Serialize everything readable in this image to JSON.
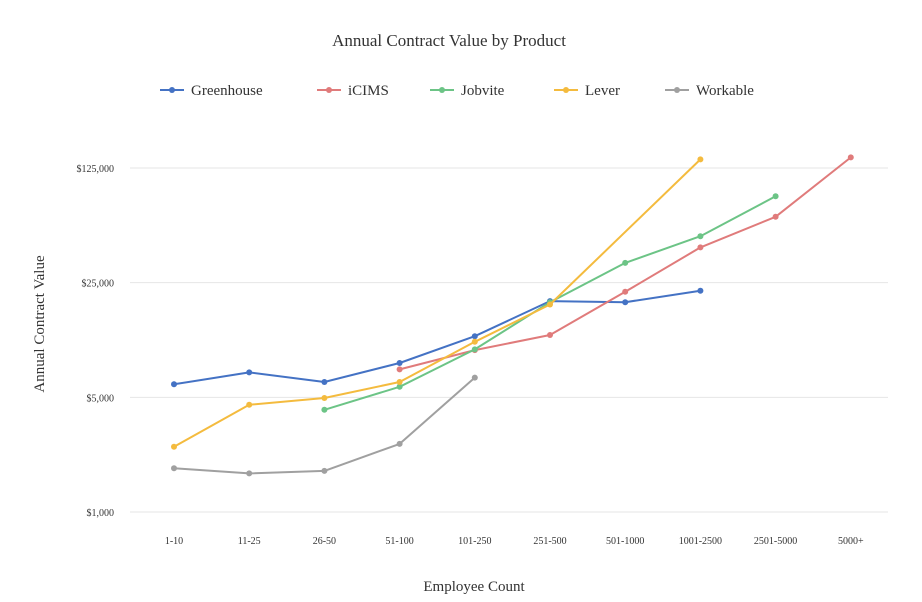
{
  "chart_data": {
    "type": "line",
    "title": "Annual Contract Value by Product",
    "xlabel": "Employee Count",
    "ylabel": "Annual Contract Value",
    "y_scale": "log",
    "ylim": [
      1000,
      200000
    ],
    "y_ticks": [
      {
        "value": 1000,
        "label": "$1,000"
      },
      {
        "value": 5000,
        "label": "$5,000"
      },
      {
        "value": 25000,
        "label": "$25,000"
      },
      {
        "value": 125000,
        "label": "$125,000"
      }
    ],
    "categories": [
      "1-10",
      "11-25",
      "26-50",
      "51-100",
      "101-250",
      "251-500",
      "501-1000",
      "1001-2500",
      "2501-5000",
      "5000+"
    ],
    "legend_position": "top",
    "grid": true,
    "series": [
      {
        "name": "Greenhouse",
        "color": "#4472c4",
        "values": [
          6000,
          7100,
          6200,
          8100,
          11800,
          19300,
          19000,
          22300,
          null,
          null
        ]
      },
      {
        "name": "iCIMS",
        "color": "#e07b7b",
        "values": [
          null,
          null,
          null,
          7400,
          9700,
          12000,
          22000,
          41000,
          63000,
          145000
        ]
      },
      {
        "name": "Jobvite",
        "color": "#6cc486",
        "values": [
          null,
          null,
          4200,
          5800,
          9800,
          19000,
          33000,
          48000,
          84000,
          null
        ]
      },
      {
        "name": "Lever",
        "color": "#f4bb3e",
        "values": [
          2500,
          4500,
          4950,
          6200,
          10900,
          18400,
          null,
          141000,
          null,
          null
        ]
      },
      {
        "name": "Workable",
        "color": "#a0a0a0",
        "values": [
          1850,
          1720,
          1780,
          2600,
          6600,
          null,
          null,
          null,
          null,
          null
        ]
      }
    ]
  }
}
